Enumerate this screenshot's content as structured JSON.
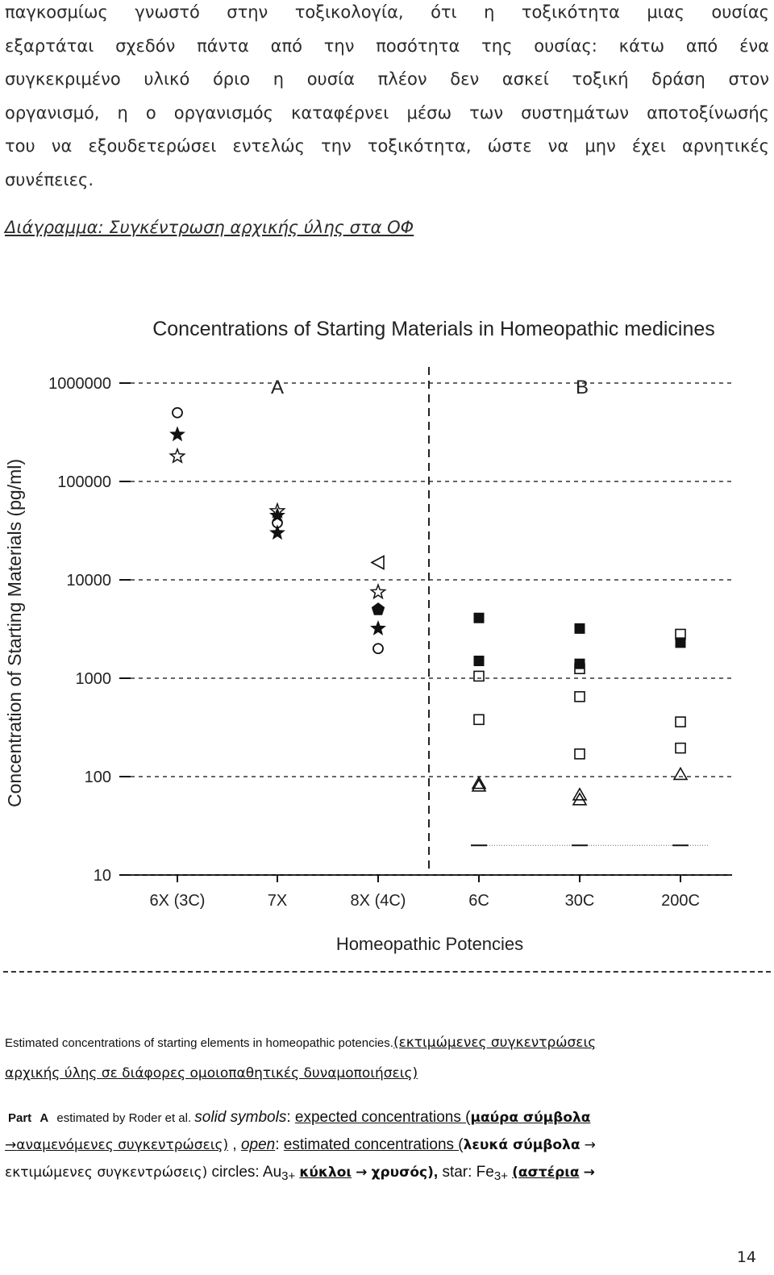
{
  "paragraph": {
    "lines": [
      "παγκοσμίως γνωστό στην τοξικολογία, ότι η τοξικότητα μιας ουσίας",
      "εξαρτάται σχεδόν πάντα από την ποσότητα της ουσίας: κάτω  από ένα",
      "συγκεκριμένο υλικό όριο η ουσία πλέον δεν ασκεί τοξική δράση στον",
      "οργανισμό, η ο οργανισμός καταφέρνει μέσω των συστημάτων αποτοξίνωσής",
      "του να εξουδετερώσει εντελώς την τοξικότητα, ώστε να μην έχει αρνητικές",
      "συνέπειες."
    ]
  },
  "diagram_heading": "Διάγραμμα: Συγκέντρωση αρχικής ύλης στα ΟΦ",
  "chart_data": {
    "type": "scatter",
    "title": "Concentrations of Starting Materials in Homeopathic medicines",
    "xlabel": "Homeopathic Potencies",
    "ylabel": "Concentration of Starting Materials (pg/ml)",
    "yscale": "log",
    "ylim": [
      10,
      1000000
    ],
    "yticks": [
      "1000000",
      "100000",
      "10000",
      "1000",
      "100",
      "10"
    ],
    "categories": [
      "6X (3C)",
      "7X",
      "8X (4C)",
      "6C",
      "30C",
      "200C"
    ],
    "panel_labels": [
      "A",
      "B"
    ],
    "series": [
      {
        "marker": "circle-open",
        "points": [
          {
            "x": "6X (3C)",
            "y": 500000
          },
          {
            "x": "7X",
            "y": 38000
          },
          {
            "x": "8X (4C)",
            "y": 2000
          }
        ]
      },
      {
        "marker": "star-filled",
        "points": [
          {
            "x": "6X (3C)",
            "y": 300000
          },
          {
            "x": "7X",
            "y": 30000
          },
          {
            "x": "8X (4C)",
            "y": 3200
          }
        ]
      },
      {
        "marker": "star-open",
        "points": [
          {
            "x": "6X (3C)",
            "y": 180000
          },
          {
            "x": "7X",
            "y": 50000
          },
          {
            "x": "8X (4C)",
            "y": 7500
          }
        ]
      },
      {
        "marker": "star-filled",
        "points": [
          {
            "x": "7X",
            "y": 45000
          }
        ]
      },
      {
        "marker": "triangle-left-open",
        "points": [
          {
            "x": "8X (4C)",
            "y": 15000
          }
        ]
      },
      {
        "marker": "pentagon-filled",
        "points": [
          {
            "x": "8X (4C)",
            "y": 5000
          }
        ]
      },
      {
        "marker": "square-filled",
        "points": [
          {
            "x": "6C",
            "y": 4100
          },
          {
            "x": "6C",
            "y": 1500
          },
          {
            "x": "30C",
            "y": 3200
          },
          {
            "x": "30C",
            "y": 1400
          },
          {
            "x": "200C",
            "y": 2300
          }
        ]
      },
      {
        "marker": "square-open",
        "points": [
          {
            "x": "6C",
            "y": 1050
          },
          {
            "x": "6C",
            "y": 380
          },
          {
            "x": "30C",
            "y": 1250
          },
          {
            "x": "30C",
            "y": 650
          },
          {
            "x": "30C",
            "y": 170
          },
          {
            "x": "200C",
            "y": 2800
          },
          {
            "x": "200C",
            "y": 360
          },
          {
            "x": "200C",
            "y": 195
          }
        ]
      },
      {
        "marker": "triangle-up-open",
        "points": [
          {
            "x": "6C",
            "y": 80
          },
          {
            "x": "6C",
            "y": 85
          },
          {
            "x": "30C",
            "y": 65
          },
          {
            "x": "30C",
            "y": 58
          },
          {
            "x": "200C",
            "y": 105
          }
        ]
      }
    ],
    "detection_limit": 20,
    "legend": "none",
    "grid": false
  },
  "caption": {
    "english": "Estimated concentrations of starting elements in homeopathic potencies.",
    "greek_a": "(εκτιμώμενες συγκεντρώσεις",
    "greek_b": "αρχικής ύλης σε διάφορες ομοιοπαθητικές δυναμοποιήσεις)"
  },
  "legend_text": {
    "part": "Part ",
    "part_a": "A",
    "estimated_by": " estimated by Roder et al. ",
    "solid": "solid symbols",
    "colon1": ": ",
    "expected": "expected concentrations (",
    "black_symbols": "μαύρα σύμβολα",
    "arrow": "→",
    "expected_gr": "αναμενόμενες συγκεντρώσεις)",
    "comma": " , ",
    "open": "open",
    "colon2": ": ",
    "estimated": "estimated concentrations (",
    "white_symbols": "λευκά σύμβολα",
    "estimated_gr": "εκτιμώμενες συγκεντρώσεις)",
    "circles": " circles: Au",
    "au_sup": "3+",
    "circles_gr": "κύκλοι",
    "gold": "χρυσός)",
    "comma2": ",",
    "star": " star: Fe",
    "fe_sup": "3+",
    "stars_gr": "(αστέρια"
  },
  "page_number": "14"
}
